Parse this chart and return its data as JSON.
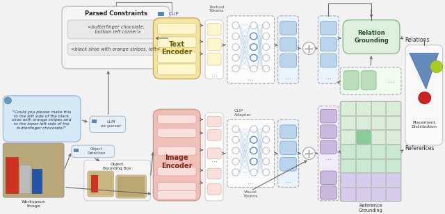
{
  "colors": {
    "bg": "#f2f2f2",
    "white": "#ffffff",
    "light_gray": "#ebebeb",
    "mid_gray": "#cccccc",
    "dark_gray": "#888888",
    "yellow_encoder": "#f5e4a0",
    "yellow_sub": "#fdf5cc",
    "pink_encoder": "#f0c0b8",
    "pink_sub": "#fae0da",
    "blue_token": "#bad3ec",
    "blue_light_bg": "#eaf2fb",
    "purple_token": "#c8b8de",
    "purple_light_bg": "#f0ecf8",
    "green_rg": "#c0dcc0",
    "green_rg_bg": "#ddf0dd",
    "green_feat": "#b8ddb8",
    "green_grid_bg": "#d8eed8",
    "green_grid_dark": "#a8c8a8",
    "purple_grid_bg": "#d8ccee",
    "speech_bg": "#d5e8f5",
    "llm_bg": "#e8eef5",
    "arrow": "#666666",
    "text_main": "#333333",
    "text_encoder": "#6b5a00",
    "text_image": "#7a2a18",
    "text_rg": "#2a4a2a",
    "node_fill": "#ffffff",
    "node_edge_blue": "#5588cc",
    "node_edge_gray": "#bbbbbb",
    "node_line": "#99bbdd"
  },
  "parsed_constraints_title": "Parsed Constraints",
  "constraint1": "<butterfinger chocolate,\n   bottom left corner>",
  "constraint2": "<black shoe with orange stripes, left>",
  "speech_text": "\"Could you please make this\nto the left side of the black\nshoe with orange stripes and\nto the lower left side of the\nbutterfinger chocolate?\"",
  "llm_label": "LLM\nas parser",
  "object_detection_label": "Object\nDetection",
  "object_bbox_label": "Object\nBounding Box",
  "workspace_label": "Workspace\nImage",
  "clip_label": "CLIP",
  "text_encoder_label": "Text\nEncoder",
  "image_encoder_label": "Image\nEncoder",
  "clip_adapter_label": "CLIP\nAdapter",
  "textual_tokens_label": "Textual\nTokens",
  "visual_tokens_label": "Visual\nTokens",
  "relation_grounding_label": "Relation\nGrounding",
  "reference_grounding_label": "Reference\nGrounding",
  "relations_label": "Relations",
  "references_label": "References",
  "placement_dist_label": "Placement\nDistribution"
}
